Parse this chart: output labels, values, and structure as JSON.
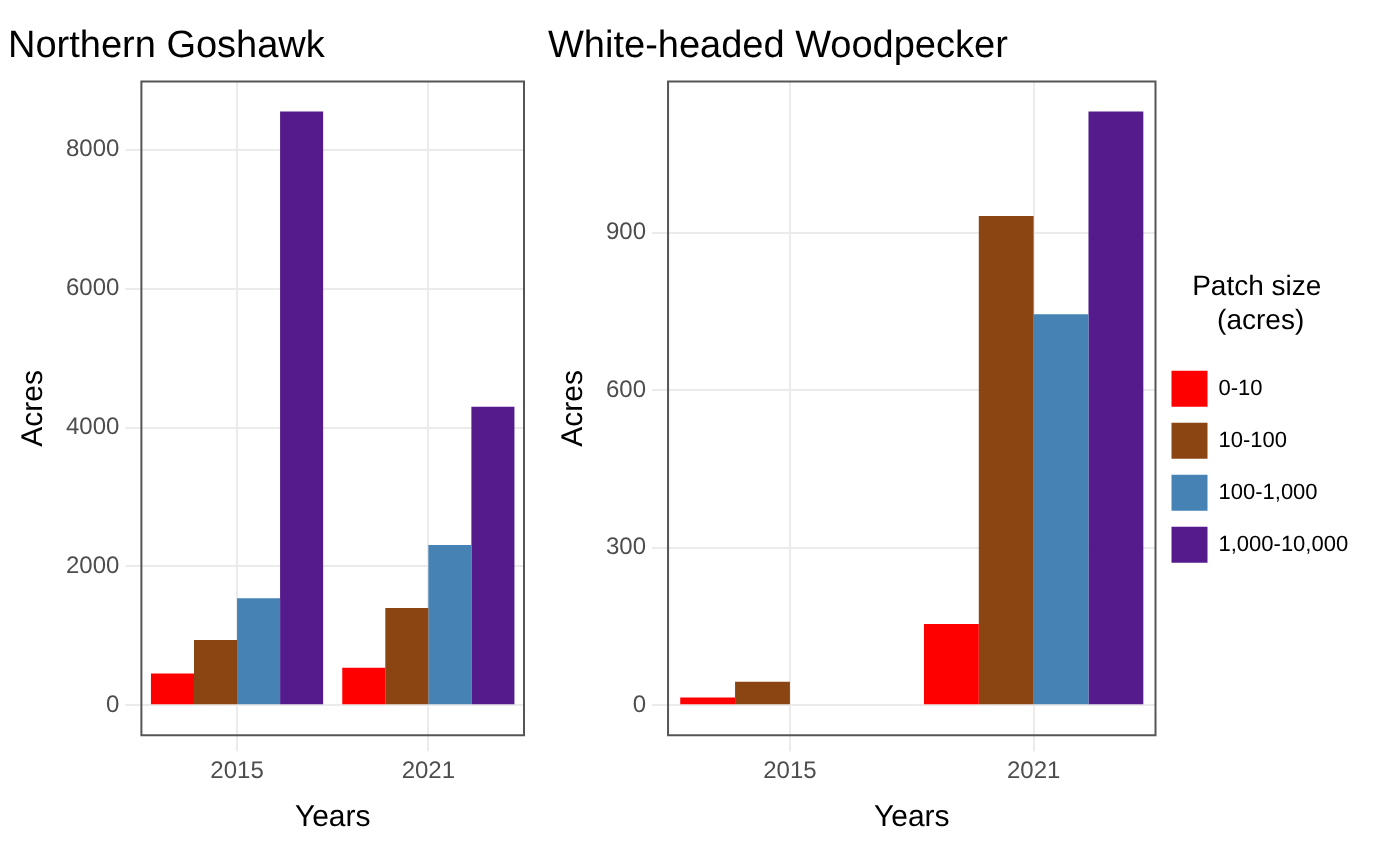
{
  "chart_data": [
    {
      "type": "bar",
      "title": "Northern Goshawk",
      "xlabel": "Years",
      "ylabel": "Acres",
      "categories": [
        "2015",
        "2021"
      ],
      "series": [
        {
          "color": "#ff0000",
          "values": [
            460,
            540
          ]
        },
        {
          "color": "#8b4513",
          "values": [
            940,
            1400
          ]
        },
        {
          "color": "#4682b4",
          "values": [
            1540,
            2310
          ]
        },
        {
          "color": "#551a8b",
          "values": [
            8550,
            4300
          ]
        }
      ],
      "ylim": [
        -430,
        8980
      ],
      "yticks": [
        0,
        2000,
        4000,
        6000,
        8000
      ],
      "grid": true,
      "legend": false
    },
    {
      "type": "bar",
      "title": "White-headed Woodpecker",
      "xlabel": "Years",
      "ylabel": "Acres",
      "categories": [
        "2015",
        "2021"
      ],
      "legend_title": "Patch size\n (acres)",
      "series": [
        {
          "name": "0-10",
          "color": "#ff0000",
          "values": [
            15,
            155
          ]
        },
        {
          "name": "10-100",
          "color": "#8b4513",
          "values": [
            45,
            932
          ]
        },
        {
          "name": "100-1,000",
          "color": "#4682b4",
          "values": [
            null,
            745
          ]
        },
        {
          "name": "1,000-10,000",
          "color": "#551a8b",
          "values": [
            null,
            1131
          ]
        }
      ],
      "ylim": [
        -57,
        1188
      ],
      "yticks": [
        0,
        300,
        600,
        900
      ],
      "grid": true,
      "legend": "right"
    }
  ]
}
